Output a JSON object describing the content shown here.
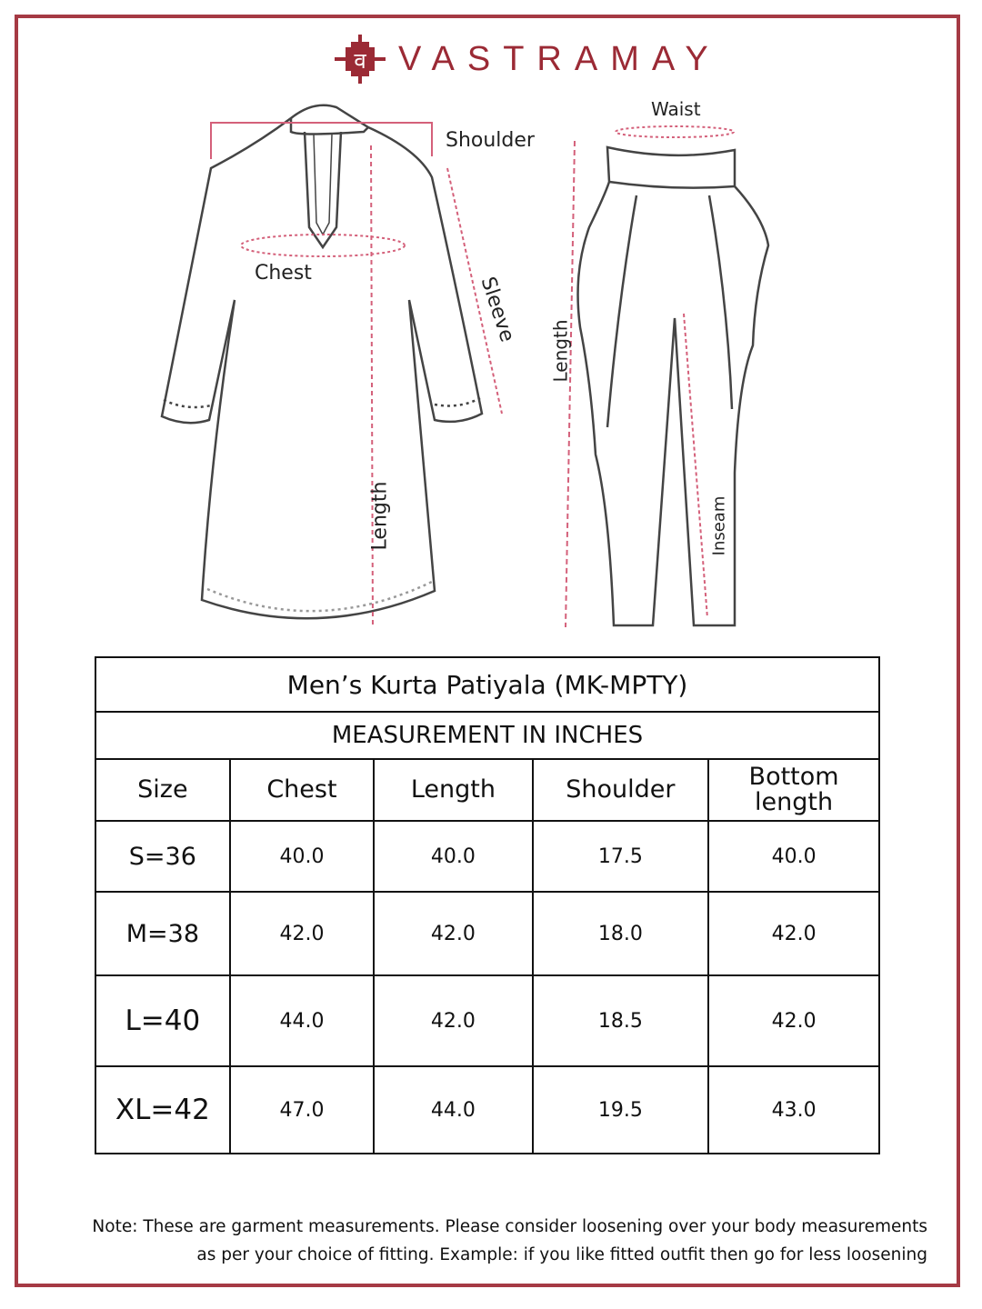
{
  "brand": {
    "name": "VASTRAMAY",
    "logo_glyph": "व",
    "color": "#9b2a35"
  },
  "frame_color": "#a53a44",
  "kurta_labels": {
    "shoulder": "Shoulder",
    "chest": "Chest",
    "sleeve": "Sleeve",
    "length": "Length"
  },
  "pants_labels": {
    "waist": "Waist",
    "length": "Length",
    "inseam": "Inseam"
  },
  "table": {
    "title": "Men’s Kurta Patiyala (MK-MPTY)",
    "subtitle": "MEASUREMENT IN INCHES",
    "headers": [
      "Size",
      "Chest",
      "Length",
      "Shoulder",
      "Bottom length"
    ],
    "rows": [
      [
        "S=36",
        "40.0",
        "40.0",
        "17.5",
        "40.0"
      ],
      [
        "M=38",
        "42.0",
        "42.0",
        "18.0",
        "42.0"
      ],
      [
        "L=40",
        "44.0",
        "42.0",
        "18.5",
        "42.0"
      ],
      [
        "XL=42",
        "47.0",
        "44.0",
        "19.5",
        "43.0"
      ]
    ]
  },
  "note": {
    "line1": "Note: These are garment measurements. Please consider loosening over your body measurements",
    "line2": "as per your choice of fitting. Example: if you like fitted outfit then go for less loosening"
  }
}
